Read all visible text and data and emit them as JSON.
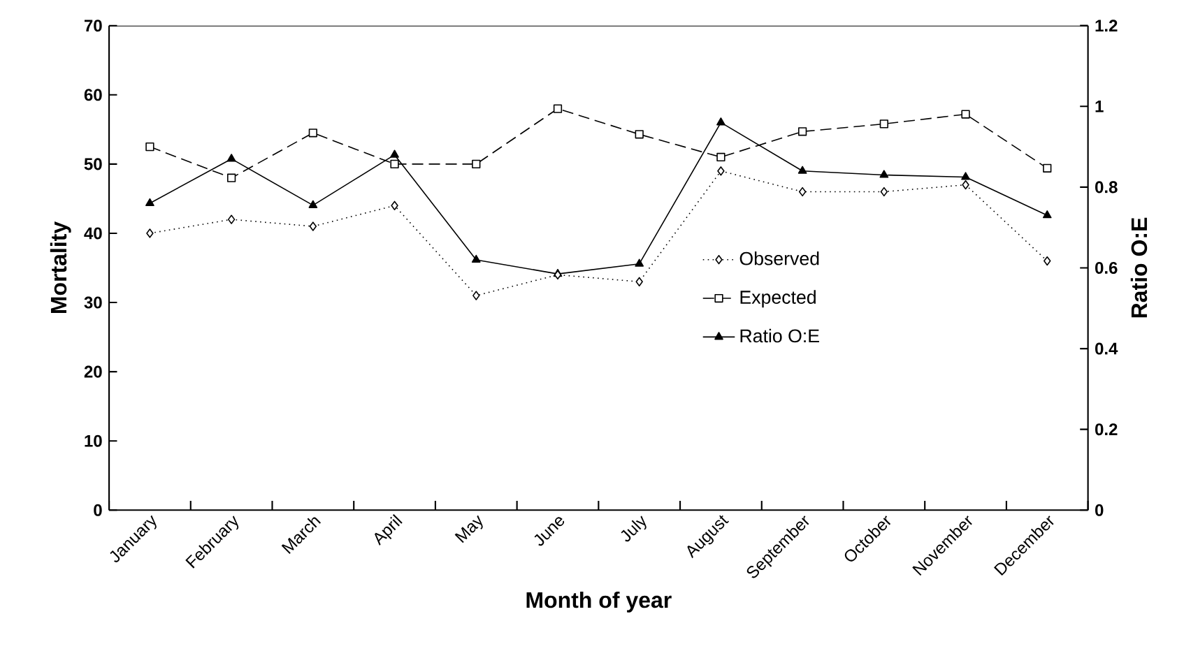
{
  "chart_data": {
    "type": "line",
    "xlabel": "Month of year",
    "ylabel": "Mortality",
    "y2label": "Ratio O:E",
    "categories": [
      "January",
      "February",
      "March",
      "April",
      "May",
      "June",
      "July",
      "August",
      "September",
      "October",
      "November",
      "December"
    ],
    "series": [
      {
        "name": "Observed",
        "color": "#000000",
        "marker": "diamond",
        "line_style": "dotted",
        "values": [
          40,
          42,
          41,
          44,
          31,
          34,
          33,
          49,
          46,
          46,
          47,
          36
        ]
      },
      {
        "name": "Expected",
        "color": "#000000",
        "marker": "square",
        "line_style": "dashed",
        "values": [
          52.5,
          48,
          54.5,
          50,
          50,
          58,
          54.3,
          51,
          54.7,
          55.8,
          57.2,
          49.4
        ]
      },
      {
        "name": "Ratio O:E",
        "color": "#000000",
        "marker": "triangle",
        "line_style": "solid",
        "axis": "y2",
        "values": [
          0.76,
          0.87,
          0.755,
          0.88,
          0.62,
          0.585,
          0.61,
          0.96,
          0.84,
          0.83,
          0.825,
          0.73
        ]
      }
    ],
    "ylim": [
      0,
      70
    ],
    "yticks": [
      0,
      10,
      20,
      30,
      40,
      50,
      60,
      70
    ],
    "y2lim": [
      0,
      1.2
    ],
    "y2ticks": [
      0,
      0.2,
      0.4,
      0.6,
      0.8,
      1,
      1.2
    ],
    "legend": "right",
    "grid": false
  }
}
